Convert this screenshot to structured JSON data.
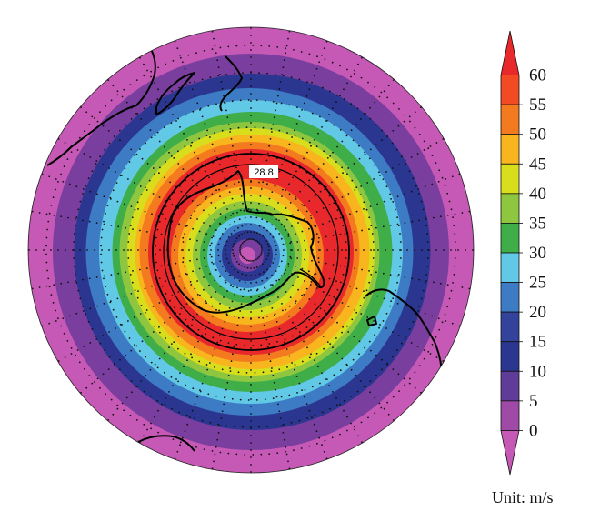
{
  "contour_label": "28.8",
  "colorbar": {
    "unit_label": "Unit: m/s",
    "ticks": [
      "60",
      "55",
      "50",
      "45",
      "40",
      "35",
      "30",
      "25",
      "20",
      "15",
      "10",
      "5",
      "0"
    ],
    "colors": [
      "#e8282a",
      "#f24a22",
      "#f37a1f",
      "#f9b51d",
      "#d9de1c",
      "#8ec63f",
      "#3fae49",
      "#61c8e6",
      "#3d7cc4",
      "#33429a",
      "#2b3690",
      "#5e3c98",
      "#a04aa8",
      "#c659b5"
    ]
  },
  "wind_rings": [
    {
      "speed": 2,
      "color": "#c659b5"
    },
    {
      "speed": 6,
      "color": "#7a3e9e"
    },
    {
      "speed": 11,
      "color": "#2b3690"
    },
    {
      "speed": 16,
      "color": "#3d7cc4"
    },
    {
      "speed": 22,
      "color": "#61c8e6"
    },
    {
      "speed": 28,
      "color": "#3fae49"
    },
    {
      "speed": 33,
      "color": "#8ec63f"
    },
    {
      "speed": 43,
      "color": "#d9de1c"
    },
    {
      "speed": 47,
      "color": "#f9b51d"
    },
    {
      "speed": 52,
      "color": "#f37a1f"
    },
    {
      "speed": 58,
      "color": "#e8282a"
    }
  ]
}
